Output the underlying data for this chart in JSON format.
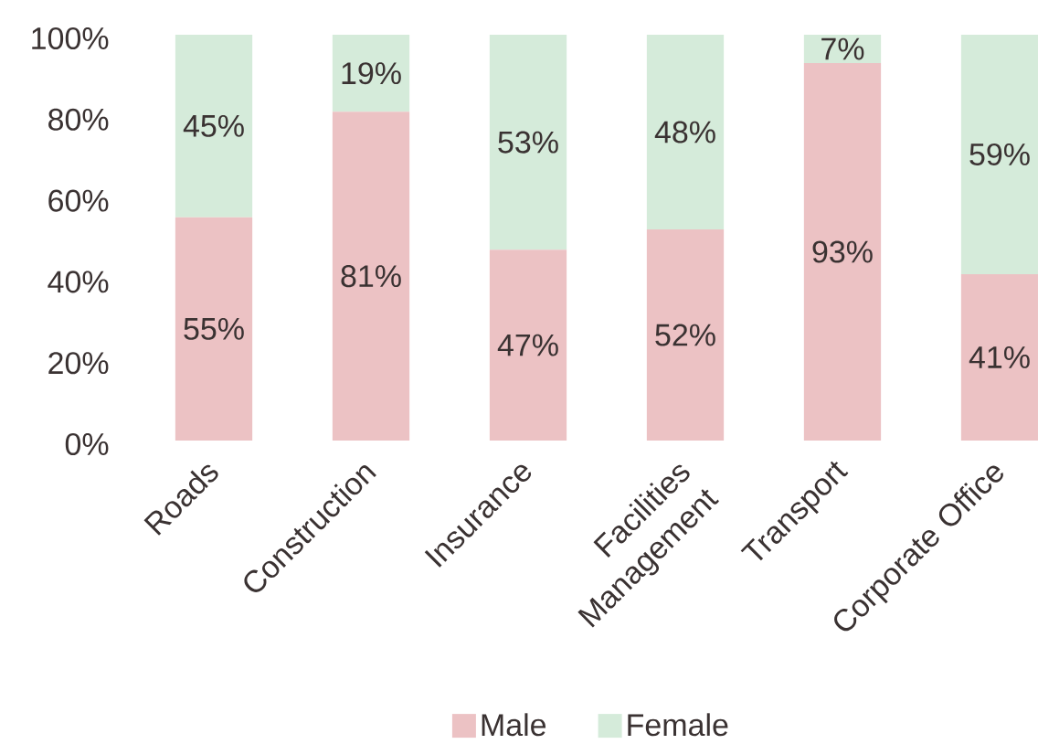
{
  "chart_data": {
    "type": "bar",
    "stacked": true,
    "categories": [
      "Roads",
      "Construction",
      "Insurance",
      "Facilities Management",
      "Transport",
      "Corporate Office"
    ],
    "series": [
      {
        "name": "Male",
        "color": "#ecc2c4",
        "values": [
          55,
          81,
          47,
          52,
          93,
          41
        ],
        "value_labels": [
          "55%",
          "81%",
          "47%",
          "52%",
          "93%",
          "41%"
        ]
      },
      {
        "name": "Female",
        "color": "#d5ebda",
        "values": [
          45,
          19,
          53,
          48,
          7,
          59
        ],
        "value_labels": [
          "45%",
          "19%",
          "53%",
          "48%",
          "7%",
          "59%"
        ]
      }
    ],
    "ylim": [
      0,
      100
    ],
    "yticks": [
      {
        "value": 0,
        "label": "0%"
      },
      {
        "value": 20,
        "label": "20%"
      },
      {
        "value": 40,
        "label": "40%"
      },
      {
        "value": 60,
        "label": "60%"
      },
      {
        "value": 80,
        "label": "80%"
      },
      {
        "value": 100,
        "label": "100%"
      }
    ],
    "legend": "bottom"
  }
}
